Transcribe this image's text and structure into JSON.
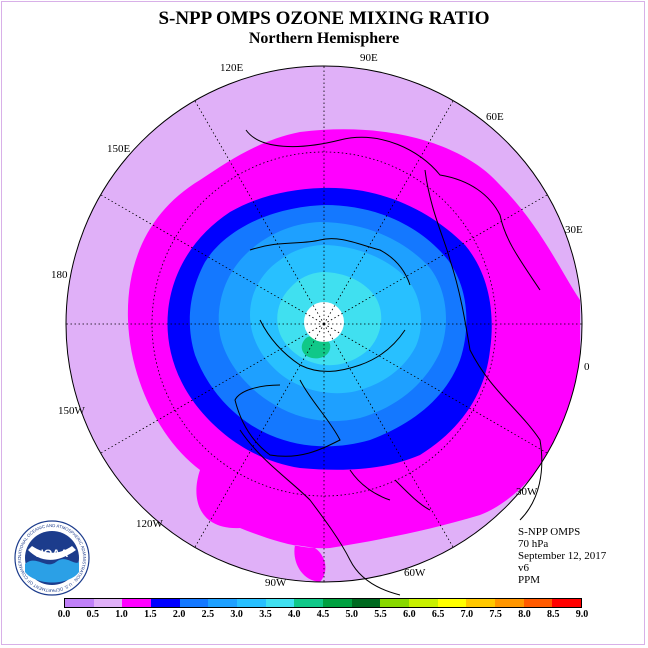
{
  "title": "S-NPP OMPS OZONE MIXING RATIO",
  "subtitle": "Northern Hemisphere",
  "longitude_labels": [
    "90E",
    "60E",
    "30E",
    "0",
    "30W",
    "60W",
    "90W",
    "120W",
    "150W",
    "180",
    "150E",
    "120E"
  ],
  "info": {
    "instrument": "S-NPP OMPS",
    "level": "70 hPa",
    "date": "September 12, 2017",
    "version": "v6",
    "units": "PPM"
  },
  "logo": {
    "text": "NOAA",
    "ring_text": "NATIONAL OCEANIC AND ATMOSPHERIC ADMINISTRATION · U.S. DEPARTMENT OF COMMERCE",
    "icon": "noaa-logo-icon"
  },
  "colorbar": {
    "ticks": [
      "0.0",
      "0.5",
      "1.0",
      "1.5",
      "2.0",
      "2.5",
      "3.0",
      "3.5",
      "4.0",
      "4.5",
      "5.0",
      "5.5",
      "6.0",
      "6.5",
      "7.0",
      "7.5",
      "8.0",
      "8.5",
      "9.0"
    ],
    "colors": [
      "#c080f8",
      "#e0b0f8",
      "#ff00ff",
      "#0000ff",
      "#1478ff",
      "#1ea0ff",
      "#28c0ff",
      "#40e0f0",
      "#10c888",
      "#00a040",
      "#006a20",
      "#88d800",
      "#c8f000",
      "#ffff00",
      "#ffc800",
      "#ff9600",
      "#ff5a00",
      "#ff0000",
      "#9a5a40"
    ]
  },
  "map_colors": {
    "outer": "#e0b0f8",
    "magenta": "#ff00ff",
    "blue": "#0000ff",
    "mid_blue": "#1478ff",
    "light_blue": "#1ea0ff",
    "sky": "#28c0ff",
    "cyan": "#40e0f0",
    "green": "#10c888",
    "pole": "#ffffff"
  }
}
